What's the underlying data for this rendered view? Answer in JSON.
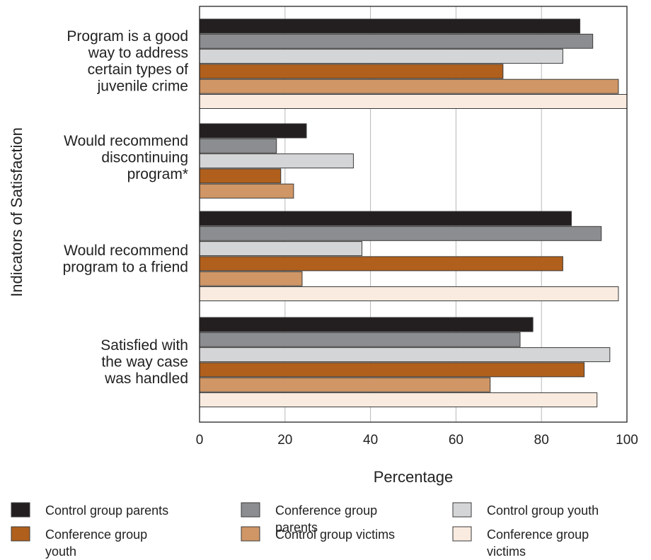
{
  "chart_data": {
    "type": "bar",
    "orientation": "horizontal",
    "categories": [
      "Program is a good way to address certain types of juvenile crime",
      "Would recommend discontinuing program*",
      "Would recommend program to a friend",
      "Satisfied with the way case was handled"
    ],
    "category_lines": [
      [
        "Program is a good",
        "way to address",
        "certain types of",
        "juvenile crime"
      ],
      [
        "Would recommend",
        "discontinuing",
        "program*"
      ],
      [
        "Would recommend",
        "program to a friend"
      ],
      [
        "Satisfied with",
        "the way case",
        "was handled"
      ]
    ],
    "series": [
      {
        "name": "Control group parents",
        "legend_lines": [
          "Control group parents"
        ],
        "color": "#231f20",
        "values": [
          89,
          25,
          87,
          78
        ]
      },
      {
        "name": "Conference group parents",
        "legend_lines": [
          "Conference group",
          "parents"
        ],
        "color": "#8c8d90",
        "values": [
          92,
          18,
          94,
          75
        ]
      },
      {
        "name": "Control group youth",
        "legend_lines": [
          "Control group youth"
        ],
        "color": "#d4d5d7",
        "values": [
          85,
          36,
          38,
          96
        ]
      },
      {
        "name": "Conference group youth",
        "legend_lines": [
          "Conference group",
          "youth"
        ],
        "color": "#b0601c",
        "values": [
          71,
          19,
          85,
          90
        ]
      },
      {
        "name": "Control group victims",
        "legend_lines": [
          "Control group victims"
        ],
        "color": "#d09666",
        "values": [
          98,
          22,
          24,
          68
        ]
      },
      {
        "name": "Conference group victims",
        "legend_lines": [
          "Conference group",
          "victims"
        ],
        "color": "#f9ebe0",
        "values": [
          100,
          null,
          98,
          93
        ]
      }
    ],
    "xlabel": "Percentage",
    "ylabel": "Indicators of Satisfaction",
    "xlim": [
      0,
      100
    ],
    "xticks": [
      "0",
      "20",
      "40",
      "60",
      "80",
      "100"
    ],
    "grid": "vertical",
    "legend": "bottom"
  }
}
